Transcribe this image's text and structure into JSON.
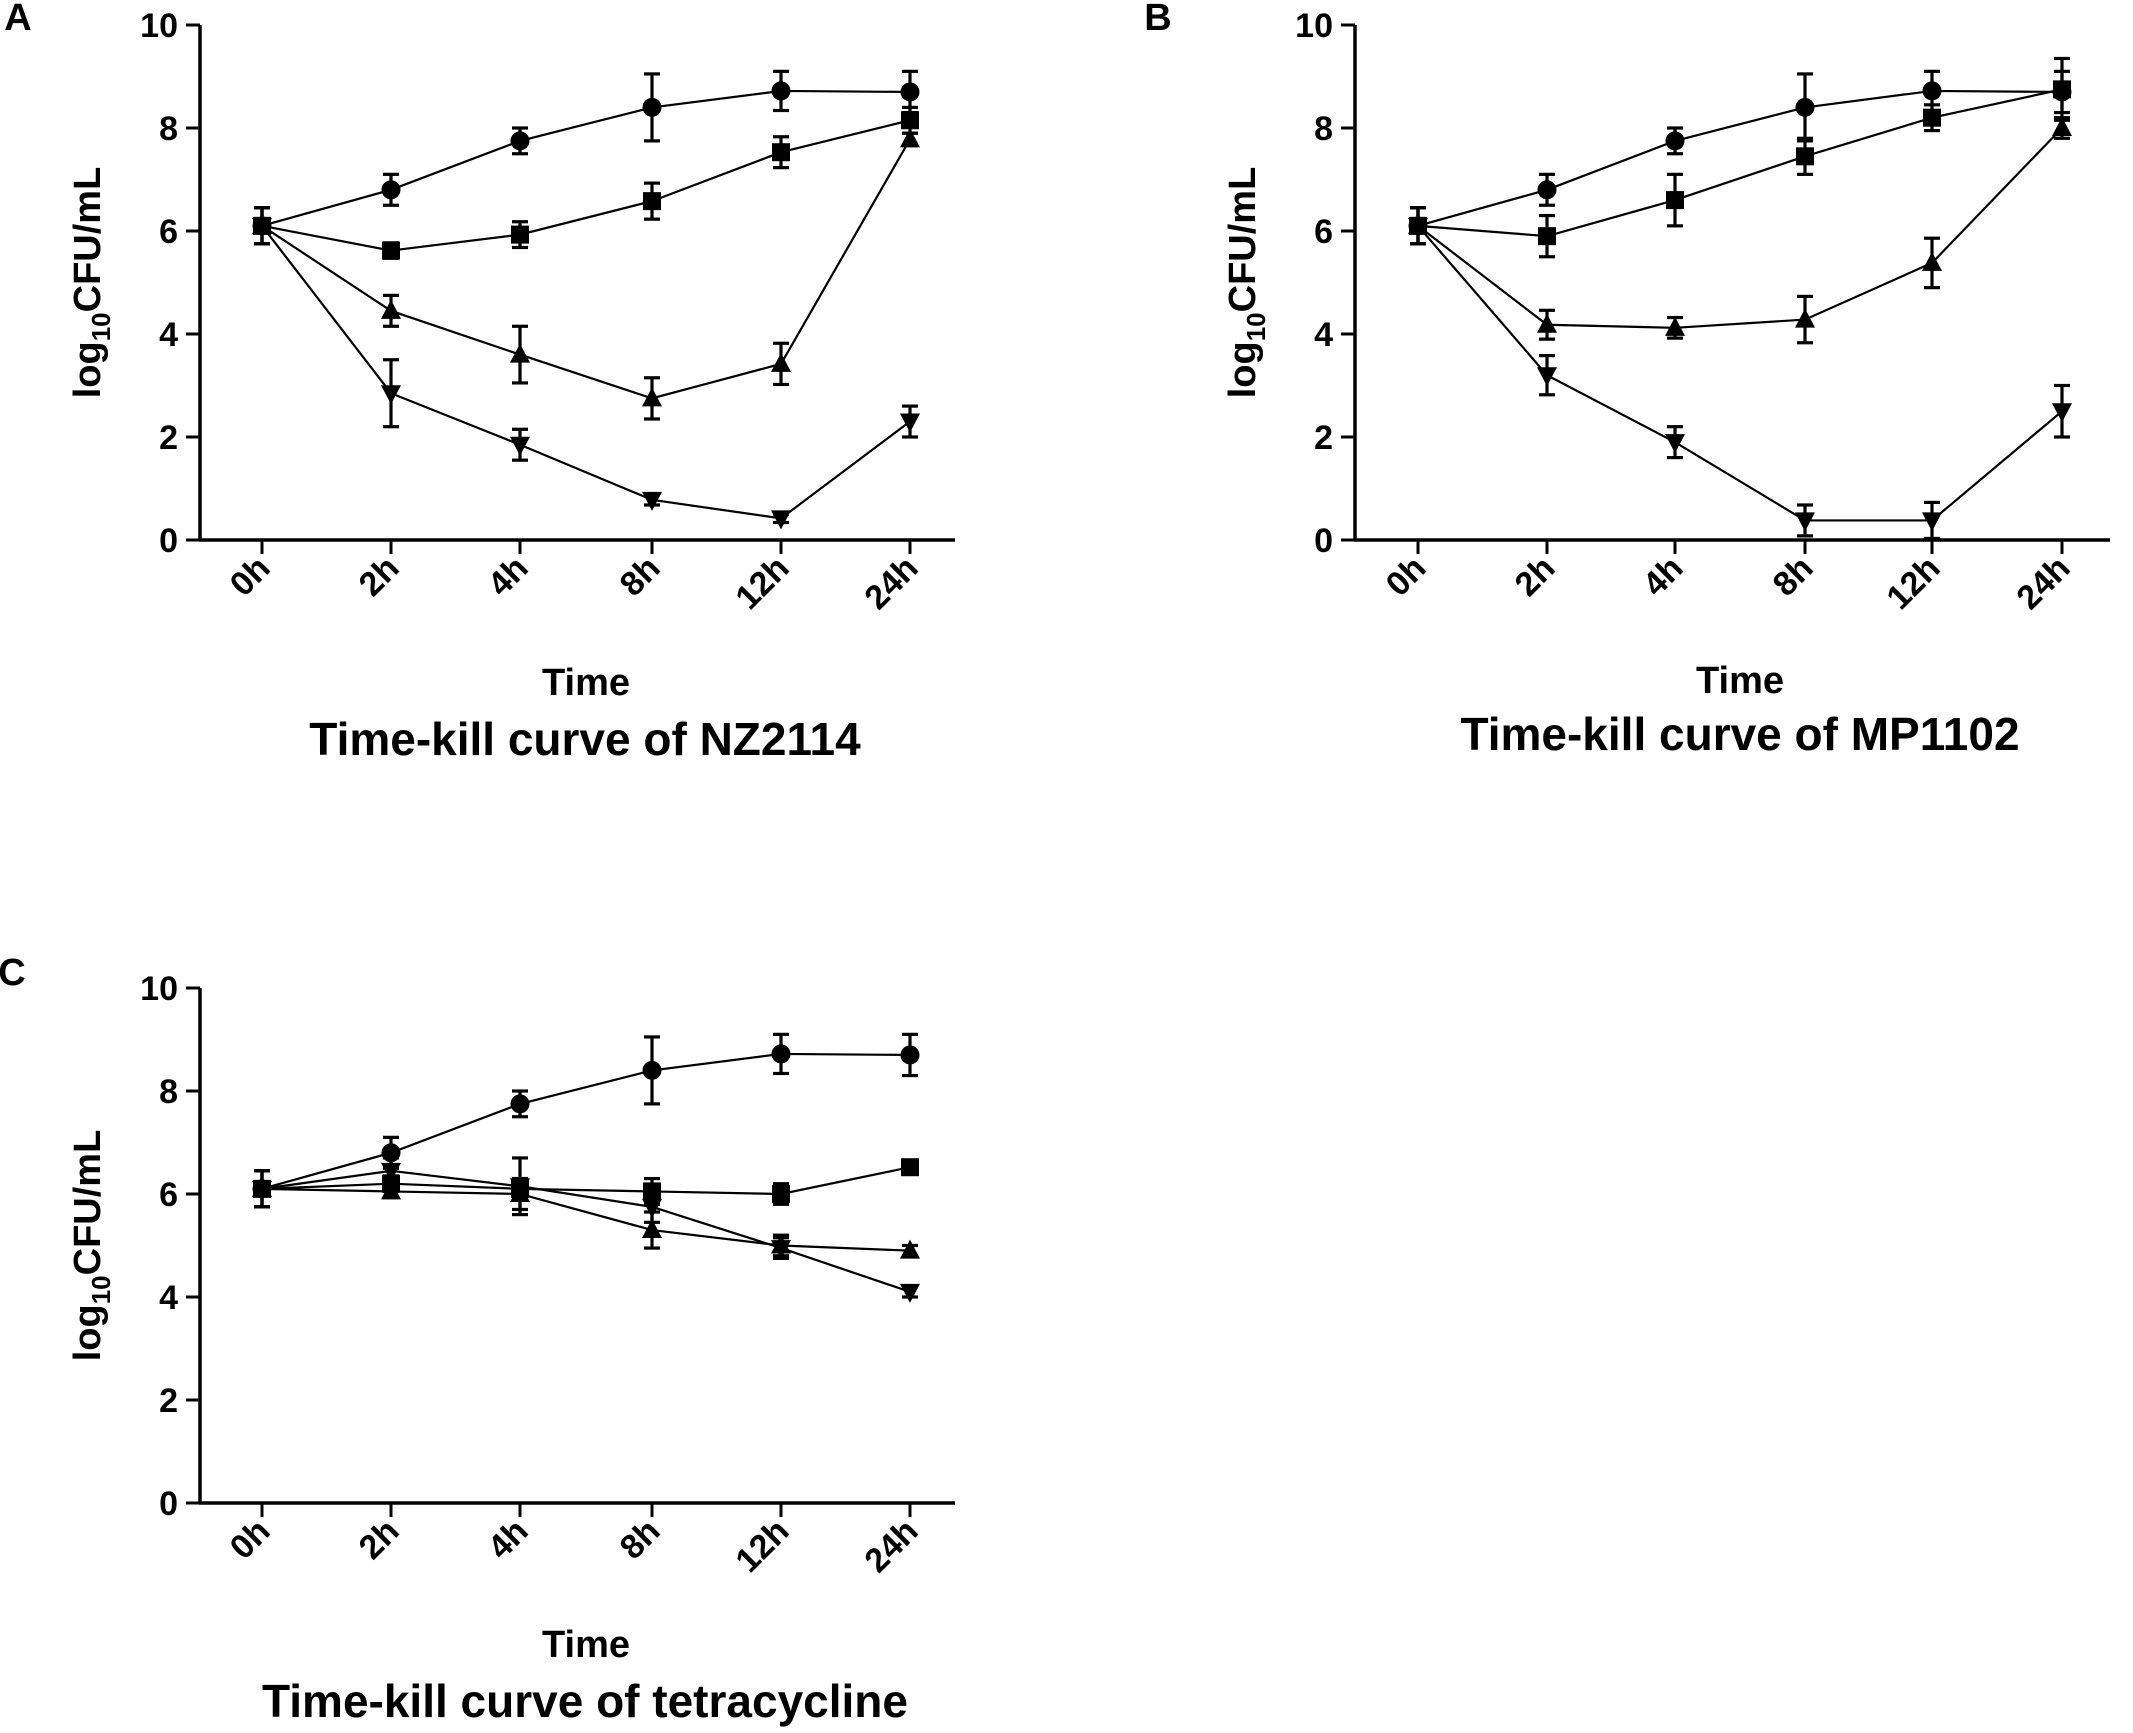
{
  "chart_data": [
    {
      "panel": "A",
      "type": "line",
      "title": "Time-kill curve of NZ2114",
      "xlabel": "Time",
      "ylabel_base": "log",
      "ylabel_sub": "10",
      "ylabel_rest": "CFU/mL",
      "categories": [
        "0h",
        "2h",
        "4h",
        "8h",
        "12h",
        "24h"
      ],
      "ylim": [
        0,
        10
      ],
      "yticks": [
        "0",
        "2",
        "4",
        "6",
        "8",
        "10"
      ],
      "series": [
        {
          "marker": "circle",
          "values": [
            6.1,
            6.8,
            7.75,
            8.4,
            8.72,
            8.7
          ],
          "errors": [
            0.35,
            0.3,
            0.25,
            0.65,
            0.38,
            0.4
          ]
        },
        {
          "marker": "square",
          "values": [
            6.1,
            5.62,
            5.93,
            6.58,
            7.53,
            8.15
          ],
          "errors": [
            0.35,
            0.15,
            0.25,
            0.35,
            0.3,
            0.25
          ]
        },
        {
          "marker": "triangle",
          "values": [
            6.1,
            4.45,
            3.6,
            2.75,
            3.42,
            7.78
          ],
          "errors": [
            0.35,
            0.3,
            0.55,
            0.4,
            0.4,
            0.12
          ]
        },
        {
          "marker": "invtri",
          "values": [
            6.1,
            2.85,
            1.85,
            0.78,
            0.42,
            2.3
          ],
          "errors": [
            0.35,
            0.65,
            0.3,
            0.1,
            0.08,
            0.3
          ]
        }
      ]
    },
    {
      "panel": "B",
      "type": "line",
      "title": "Time-kill curve of MP1102",
      "xlabel": "Time",
      "ylabel_base": "log",
      "ylabel_sub": "10",
      "ylabel_rest": "CFU/mL",
      "categories": [
        "0h",
        "2h",
        "4h",
        "8h",
        "12h",
        "24h"
      ],
      "ylim": [
        0,
        10
      ],
      "yticks": [
        "0",
        "2",
        "4",
        "6",
        "8",
        "10"
      ],
      "series": [
        {
          "marker": "circle",
          "values": [
            6.1,
            6.8,
            7.75,
            8.4,
            8.72,
            8.7
          ],
          "errors": [
            0.35,
            0.3,
            0.25,
            0.65,
            0.38,
            0.4
          ]
        },
        {
          "marker": "square",
          "values": [
            6.1,
            5.9,
            6.6,
            7.45,
            8.2,
            8.75
          ],
          "errors": [
            0.35,
            0.4,
            0.5,
            0.35,
            0.25,
            0.6
          ]
        },
        {
          "marker": "triangle",
          "values": [
            6.1,
            4.18,
            4.12,
            4.28,
            5.38,
            8.0
          ],
          "errors": [
            0.35,
            0.28,
            0.2,
            0.45,
            0.48,
            0.2
          ]
        },
        {
          "marker": "invtri",
          "values": [
            6.1,
            3.2,
            1.9,
            0.38,
            0.38,
            2.5
          ],
          "errors": [
            0.35,
            0.38,
            0.3,
            0.3,
            0.35,
            0.5
          ]
        }
      ]
    },
    {
      "panel": "C",
      "type": "line",
      "title": "Time-kill curve of tetracycline",
      "xlabel": "Time",
      "ylabel_base": "log",
      "ylabel_sub": "10",
      "ylabel_rest": "CFU/mL",
      "categories": [
        "0h",
        "2h",
        "4h",
        "8h",
        "12h",
        "24h"
      ],
      "ylim": [
        0,
        10
      ],
      "yticks": [
        "0",
        "2",
        "4",
        "6",
        "8",
        "10"
      ],
      "series": [
        {
          "marker": "circle",
          "values": [
            6.1,
            6.8,
            7.75,
            8.4,
            8.72,
            8.7
          ],
          "errors": [
            0.35,
            0.3,
            0.25,
            0.65,
            0.38,
            0.4
          ]
        },
        {
          "marker": "square",
          "values": [
            6.1,
            6.2,
            6.1,
            6.05,
            6.0,
            6.52
          ],
          "errors": [
            0.35,
            0.15,
            0.2,
            0.25,
            0.2,
            0.08
          ]
        },
        {
          "marker": "triangle",
          "values": [
            6.1,
            6.05,
            6.0,
            5.3,
            5.0,
            4.9
          ],
          "errors": [
            0.35,
            0.12,
            0.3,
            0.35,
            0.2,
            0.1
          ]
        },
        {
          "marker": "invtri",
          "values": [
            6.1,
            6.45,
            6.15,
            5.75,
            4.95,
            4.1
          ],
          "errors": [
            0.35,
            0.25,
            0.55,
            0.3,
            0.2,
            0.1
          ]
        }
      ]
    }
  ]
}
